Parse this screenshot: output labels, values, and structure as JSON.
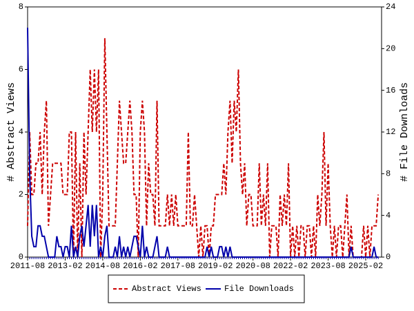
{
  "chart_data": {
    "type": "line",
    "x_label": null,
    "y_label": "# Abstract Views",
    "y2_label": "# File Downloads",
    "categories": [
      "2011-08",
      null,
      null,
      null,
      null,
      null,
      null,
      null,
      null,
      null,
      null,
      null,
      null,
      null,
      null,
      null,
      null,
      null,
      "2013-02",
      null,
      null,
      null,
      null,
      null,
      null,
      null,
      null,
      null,
      null,
      null,
      null,
      null,
      null,
      null,
      null,
      null,
      "2014-08",
      null,
      null,
      null,
      null,
      null,
      null,
      null,
      null,
      null,
      null,
      null,
      null,
      null,
      null,
      null,
      null,
      null,
      "2016-02",
      null,
      null,
      null,
      null,
      null,
      null,
      null,
      null,
      null,
      null,
      null,
      null,
      null,
      null,
      null,
      null,
      null,
      "2017-08",
      null,
      null,
      null,
      null,
      null,
      null,
      null,
      null,
      null,
      null,
      null,
      null,
      null,
      null,
      null,
      null,
      null,
      "2019-02",
      null,
      null,
      null,
      null,
      null,
      null,
      null,
      null,
      null,
      null,
      null,
      null,
      null,
      null,
      null,
      null,
      null,
      "2020-08",
      null,
      null,
      null,
      null,
      null,
      null,
      null,
      null,
      null,
      null,
      null,
      null,
      null,
      null,
      null,
      null,
      null,
      "2022-02",
      null,
      null,
      null,
      null,
      null,
      null,
      null,
      null,
      null,
      null,
      null,
      null,
      null,
      null,
      null,
      null,
      null,
      "2023-08",
      null,
      null,
      null,
      null,
      null,
      null,
      null,
      null,
      null,
      null,
      null,
      null,
      null,
      null,
      null,
      null,
      null,
      "2025-02",
      null,
      null,
      null,
      null,
      null,
      null
    ],
    "series": [
      {
        "name": "Abstract Views",
        "color": "#cc0000",
        "dash": true,
        "values": [
          1,
          4,
          2,
          2,
          3,
          3,
          4,
          2,
          4,
          5,
          1,
          2,
          3,
          3,
          3,
          3,
          3,
          2,
          2,
          2,
          4,
          4,
          0,
          4,
          0,
          3,
          0,
          4,
          2,
          4,
          6,
          4,
          6,
          4,
          6,
          0,
          2,
          7,
          4,
          1,
          1,
          1,
          1,
          3,
          5,
          4,
          3,
          3,
          4,
          5,
          4,
          2,
          2,
          0,
          4,
          5,
          4,
          1,
          3,
          2,
          2,
          1,
          5,
          1,
          1,
          1,
          1,
          2,
          1,
          2,
          1,
          2,
          1,
          1,
          1,
          1,
          1,
          4,
          1,
          1,
          2,
          1,
          0,
          1,
          0,
          1,
          1,
          0,
          1,
          1,
          2,
          2,
          2,
          2,
          3,
          2,
          4,
          5,
          3,
          5,
          4,
          6,
          3,
          2,
          3,
          1,
          2,
          2,
          1,
          1,
          1,
          3,
          1,
          2,
          1,
          3,
          0,
          1,
          1,
          1,
          0,
          2,
          1,
          2,
          1,
          3,
          0,
          1,
          0,
          1,
          0,
          1,
          1,
          0,
          1,
          1,
          0,
          1,
          0,
          2,
          1,
          2,
          4,
          1,
          3,
          1,
          0,
          1,
          0,
          1,
          1,
          0,
          1,
          2,
          0,
          1,
          0,
          0,
          0,
          0,
          0,
          1,
          0,
          1,
          0,
          1,
          1,
          1,
          2
        ]
      },
      {
        "name": "File Downloads",
        "color": "#0000aa",
        "dash": false,
        "axis": "y2",
        "values": [
          22,
          8,
          2,
          1,
          1,
          3,
          3,
          2,
          2,
          1,
          0,
          0,
          0,
          0,
          2,
          1,
          1,
          0,
          1,
          1,
          0,
          3,
          0,
          1,
          0,
          2,
          3,
          1,
          3,
          5,
          1,
          5,
          2,
          5,
          0,
          1,
          0,
          2,
          3,
          0,
          0,
          0,
          1,
          0,
          2,
          0,
          1,
          0,
          1,
          0,
          1,
          2,
          2,
          1,
          0,
          3,
          0,
          1,
          0,
          0,
          0,
          1,
          2,
          0,
          0,
          0,
          0,
          1,
          0,
          0,
          0,
          0,
          0,
          0,
          0,
          0,
          0,
          0,
          0,
          0,
          0,
          0,
          0,
          0,
          0,
          0,
          1,
          0,
          1,
          0,
          0,
          0,
          1,
          1,
          0,
          1,
          0,
          1,
          0,
          0,
          0,
          0,
          0,
          0,
          0,
          0,
          0,
          0,
          0,
          0,
          0,
          0,
          0,
          0,
          0,
          0,
          0,
          0,
          0,
          0,
          0,
          0,
          0,
          0,
          0,
          0,
          0,
          0,
          0,
          0,
          0,
          0,
          0,
          0,
          0,
          0,
          0,
          0,
          0,
          0,
          0,
          0,
          0,
          0,
          0,
          0,
          0,
          0,
          0,
          0,
          0,
          0,
          0,
          0,
          0,
          1,
          0,
          0,
          0,
          0,
          0,
          0,
          0,
          0,
          0,
          0,
          1,
          0,
          0
        ]
      }
    ],
    "ylim": [
      0,
      8
    ],
    "yticks": [
      0,
      2,
      4,
      6,
      8
    ],
    "y2lim": [
      0,
      24
    ],
    "y2ticks": [
      0,
      4,
      8,
      12,
      16,
      20,
      24
    ],
    "legend": "bottom"
  }
}
